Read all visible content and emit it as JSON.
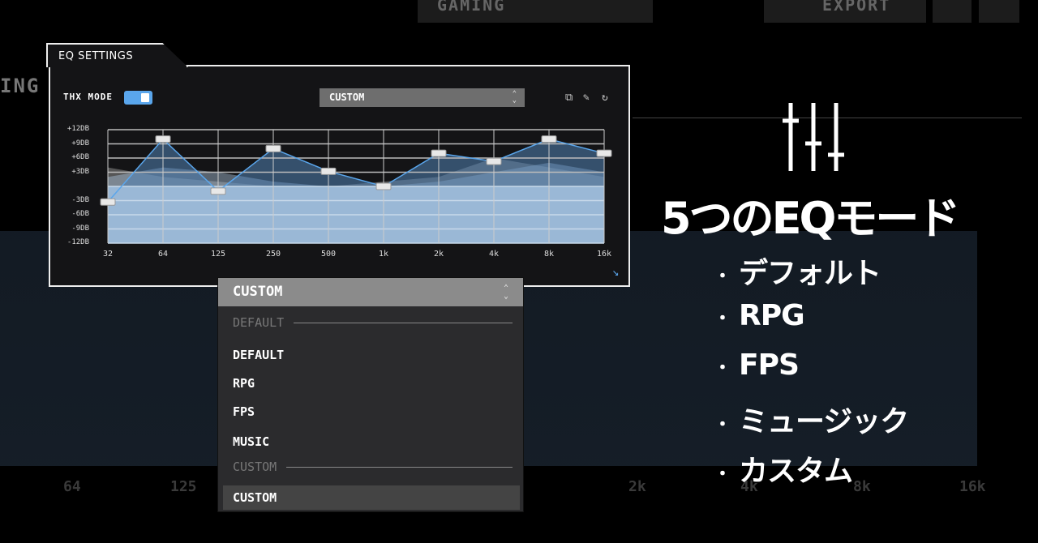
{
  "background_app": {
    "profile": "GAMING",
    "export_label": "EXPORT",
    "side_fragment": "ING",
    "x_labels": [
      "64",
      "125",
      "2k",
      "4k",
      "8k",
      "16k"
    ]
  },
  "eq_panel": {
    "title": "EQ SETTINGS",
    "thx_mode_label": "THX MODE",
    "thx_mode_on": true,
    "preset": "CUSTOM",
    "icons": [
      "copy-icon",
      "edit-icon",
      "reset-icon"
    ],
    "accent": "#5aa6ec"
  },
  "chart_data": {
    "type": "line",
    "x": [
      "32",
      "64",
      "125",
      "250",
      "500",
      "1k",
      "2k",
      "4k",
      "8k",
      "16k"
    ],
    "y_ticks": [
      "+12DB",
      "+9DB",
      "+6DB",
      "+3DB",
      "-3DB",
      "-6DB",
      "-9DB",
      "-12DB"
    ],
    "ylim": [
      -12,
      12
    ],
    "grid": true,
    "series": [
      {
        "values": [
          -3.3,
          10,
          -1,
          8,
          3.2,
          0,
          7,
          5.3,
          10,
          7
        ],
        "color": "#5aa6ec"
      }
    ]
  },
  "dropdown": {
    "selected": "CUSTOM",
    "group_default": "DEFAULT",
    "options_default": [
      "DEFAULT",
      "RPG",
      "FPS",
      "MUSIC"
    ],
    "group_custom": "CUSTOM",
    "options_custom": [
      "CUSTOM"
    ]
  },
  "promo": {
    "heading": "5つのEQモード",
    "bullet": "・",
    "items": [
      "デフォルト",
      "RPG",
      "FPS",
      "ミュージック",
      "カスタム"
    ]
  }
}
